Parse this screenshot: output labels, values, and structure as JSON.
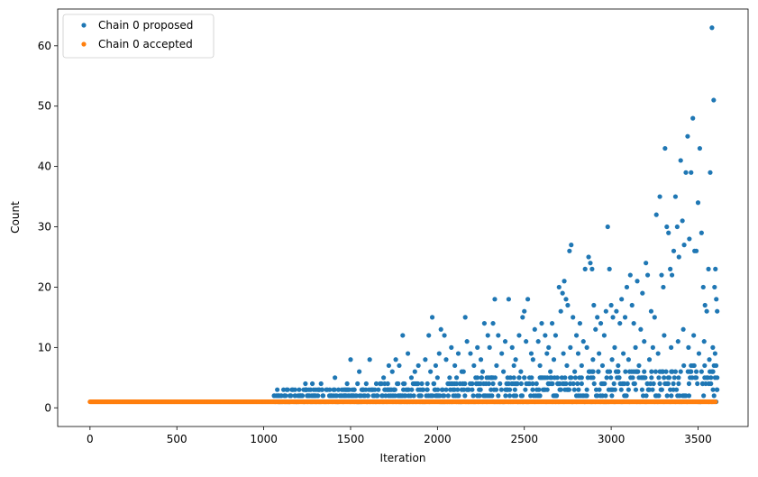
{
  "chart_data": {
    "type": "scatter",
    "xlabel": "Iteration",
    "ylabel": "Count",
    "xlim": [
      -186,
      3788
    ],
    "ylim": [
      -3.1,
      66.1
    ],
    "x_ticks": [
      0,
      500,
      1000,
      1500,
      2000,
      2500,
      3000,
      3500
    ],
    "y_ticks": [
      0,
      10,
      20,
      30,
      40,
      50,
      60
    ],
    "grid": false,
    "legend_position": "top-left",
    "series": [
      {
        "name": "Chain 0 proposed",
        "color": "#1f77b4",
        "note_points": "Dense band of proposals at counts 1-2 for early iterations; spread grows with iteration",
        "points": [
          [
            1060,
            2
          ],
          [
            1080,
            2
          ],
          [
            1100,
            2
          ],
          [
            1120,
            2
          ],
          [
            1150,
            2
          ],
          [
            1180,
            2
          ],
          [
            1210,
            2
          ],
          [
            1230,
            3
          ],
          [
            1240,
            4
          ],
          [
            1260,
            3
          ],
          [
            1280,
            4
          ],
          [
            1300,
            2
          ],
          [
            1320,
            3
          ],
          [
            1330,
            4
          ],
          [
            1360,
            3
          ],
          [
            1390,
            2
          ],
          [
            1410,
            5
          ],
          [
            1430,
            3
          ],
          [
            1460,
            3
          ],
          [
            1480,
            4
          ],
          [
            1500,
            8
          ],
          [
            1520,
            3
          ],
          [
            1540,
            4
          ],
          [
            1550,
            6
          ],
          [
            1570,
            3
          ],
          [
            1590,
            4
          ],
          [
            1610,
            8
          ],
          [
            1630,
            3
          ],
          [
            1650,
            2
          ],
          [
            1670,
            4
          ],
          [
            1690,
            5
          ],
          [
            1700,
            3
          ],
          [
            1720,
            7
          ],
          [
            1740,
            6
          ],
          [
            1760,
            8
          ],
          [
            1780,
            7
          ],
          [
            1800,
            12
          ],
          [
            1810,
            4
          ],
          [
            1830,
            9
          ],
          [
            1850,
            5
          ],
          [
            1870,
            6
          ],
          [
            1890,
            7
          ],
          [
            1910,
            4
          ],
          [
            1930,
            8
          ],
          [
            1950,
            12
          ],
          [
            1960,
            6
          ],
          [
            1970,
            15
          ],
          [
            1990,
            7
          ],
          [
            2010,
            9
          ],
          [
            2020,
            13
          ],
          [
            2040,
            12
          ],
          [
            2050,
            8
          ],
          [
            2070,
            5
          ],
          [
            2080,
            10
          ],
          [
            2100,
            7
          ],
          [
            2120,
            9
          ],
          [
            2140,
            6
          ],
          [
            2160,
            15
          ],
          [
            2170,
            11
          ],
          [
            2190,
            9
          ],
          [
            2210,
            7
          ],
          [
            2230,
            10
          ],
          [
            2250,
            8
          ],
          [
            2270,
            14
          ],
          [
            2290,
            12
          ],
          [
            2300,
            10
          ],
          [
            2320,
            14
          ],
          [
            2330,
            18
          ],
          [
            2350,
            12
          ],
          [
            2370,
            9
          ],
          [
            2390,
            11
          ],
          [
            2410,
            18
          ],
          [
            2430,
            10
          ],
          [
            2450,
            8
          ],
          [
            2470,
            12
          ],
          [
            2490,
            15
          ],
          [
            2500,
            16
          ],
          [
            2510,
            11
          ],
          [
            2520,
            18
          ],
          [
            2540,
            9
          ],
          [
            2560,
            13
          ],
          [
            2580,
            11
          ],
          [
            2600,
            14
          ],
          [
            2620,
            12
          ],
          [
            2640,
            10
          ],
          [
            2660,
            14
          ],
          [
            2680,
            12
          ],
          [
            2700,
            20
          ],
          [
            2710,
            16
          ],
          [
            2720,
            19
          ],
          [
            2730,
            21
          ],
          [
            2740,
            18
          ],
          [
            2750,
            17
          ],
          [
            2760,
            26
          ],
          [
            2770,
            27
          ],
          [
            2780,
            15
          ],
          [
            2800,
            12
          ],
          [
            2820,
            14
          ],
          [
            2840,
            11
          ],
          [
            2850,
            23
          ],
          [
            2870,
            25
          ],
          [
            2880,
            24
          ],
          [
            2890,
            23
          ],
          [
            2900,
            17
          ],
          [
            2910,
            13
          ],
          [
            2920,
            15
          ],
          [
            2940,
            14
          ],
          [
            2960,
            12
          ],
          [
            2970,
            16
          ],
          [
            2980,
            30
          ],
          [
            2990,
            23
          ],
          [
            3000,
            17
          ],
          [
            3010,
            15
          ],
          [
            3030,
            16
          ],
          [
            3050,
            14
          ],
          [
            3060,
            18
          ],
          [
            3080,
            15
          ],
          [
            3090,
            20
          ],
          [
            3110,
            22
          ],
          [
            3120,
            17
          ],
          [
            3130,
            14
          ],
          [
            3150,
            21
          ],
          [
            3170,
            13
          ],
          [
            3180,
            19
          ],
          [
            3200,
            24
          ],
          [
            3210,
            22
          ],
          [
            3230,
            16
          ],
          [
            3250,
            15
          ],
          [
            3260,
            32
          ],
          [
            3280,
            35
          ],
          [
            3290,
            22
          ],
          [
            3300,
            20
          ],
          [
            3310,
            43
          ],
          [
            3320,
            30
          ],
          [
            3330,
            29
          ],
          [
            3340,
            23
          ],
          [
            3350,
            22
          ],
          [
            3360,
            26
          ],
          [
            3370,
            35
          ],
          [
            3380,
            30
          ],
          [
            3390,
            25
          ],
          [
            3400,
            41
          ],
          [
            3410,
            31
          ],
          [
            3420,
            27
          ],
          [
            3430,
            39
          ],
          [
            3440,
            45
          ],
          [
            3450,
            28
          ],
          [
            3460,
            39
          ],
          [
            3470,
            48
          ],
          [
            3480,
            26
          ],
          [
            3490,
            26
          ],
          [
            3500,
            34
          ],
          [
            3510,
            43
          ],
          [
            3520,
            29
          ],
          [
            3530,
            20
          ],
          [
            3540,
            17
          ],
          [
            3550,
            16
          ],
          [
            3560,
            23
          ],
          [
            3570,
            39
          ],
          [
            3580,
            63
          ],
          [
            3590,
            51
          ],
          [
            3595,
            20
          ],
          [
            3600,
            23
          ],
          [
            3605,
            18
          ],
          [
            3610,
            16
          ],
          [
            1090,
            1
          ],
          [
            1140,
            1
          ],
          [
            1200,
            1
          ],
          [
            1250,
            2
          ],
          [
            1290,
            2
          ],
          [
            1340,
            2
          ],
          [
            1380,
            3
          ],
          [
            1420,
            2
          ],
          [
            1470,
            2
          ],
          [
            1510,
            2
          ],
          [
            1560,
            2
          ],
          [
            1600,
            2
          ],
          [
            1640,
            3
          ],
          [
            1680,
            2
          ],
          [
            1710,
            3
          ],
          [
            1750,
            3
          ],
          [
            1790,
            2
          ],
          [
            1820,
            3
          ],
          [
            1860,
            4
          ],
          [
            1900,
            2
          ],
          [
            1940,
            3
          ],
          [
            1980,
            4
          ],
          [
            2000,
            5
          ],
          [
            2030,
            3
          ],
          [
            2060,
            4
          ],
          [
            2090,
            3
          ],
          [
            2110,
            5
          ],
          [
            2130,
            4
          ],
          [
            2150,
            6
          ],
          [
            2180,
            3
          ],
          [
            2200,
            4
          ],
          [
            2220,
            5
          ],
          [
            2240,
            3
          ],
          [
            2260,
            6
          ],
          [
            2280,
            4
          ],
          [
            2310,
            5
          ],
          [
            2340,
            7
          ],
          [
            2360,
            4
          ],
          [
            2380,
            6
          ],
          [
            2400,
            3
          ],
          [
            2420,
            5
          ],
          [
            2440,
            7
          ],
          [
            2460,
            4
          ],
          [
            2480,
            6
          ],
          [
            2530,
            5
          ],
          [
            2550,
            8
          ],
          [
            2570,
            4
          ],
          [
            2590,
            7
          ],
          [
            2610,
            5
          ],
          [
            2630,
            9
          ],
          [
            2650,
            6
          ],
          [
            2670,
            8
          ],
          [
            2690,
            5
          ],
          [
            2725,
            9
          ],
          [
            2745,
            7
          ],
          [
            2765,
            10
          ],
          [
            2790,
            6
          ],
          [
            2810,
            9
          ],
          [
            2830,
            7
          ],
          [
            2860,
            10
          ],
          [
            2895,
            8
          ],
          [
            2930,
            9
          ],
          [
            2950,
            7
          ],
          [
            3005,
            8
          ],
          [
            3020,
            10
          ],
          [
            3040,
            7
          ],
          [
            3070,
            9
          ],
          [
            3100,
            8
          ],
          [
            3140,
            10
          ],
          [
            3160,
            7
          ],
          [
            3190,
            11
          ],
          [
            3220,
            8
          ],
          [
            3240,
            10
          ],
          [
            3270,
            9
          ],
          [
            3305,
            12
          ],
          [
            3345,
            10
          ],
          [
            3385,
            11
          ],
          [
            3415,
            13
          ],
          [
            3445,
            10
          ],
          [
            3475,
            12
          ],
          [
            3505,
            9
          ],
          [
            3535,
            11
          ],
          [
            3565,
            8
          ],
          [
            3585,
            10
          ],
          [
            3598,
            9
          ],
          [
            3608,
            3
          ]
        ]
      },
      {
        "name": "Chain 0 accepted",
        "color": "#ff7f0e",
        "x_range": [
          0,
          3600
        ],
        "y_constant": 1
      }
    ]
  }
}
